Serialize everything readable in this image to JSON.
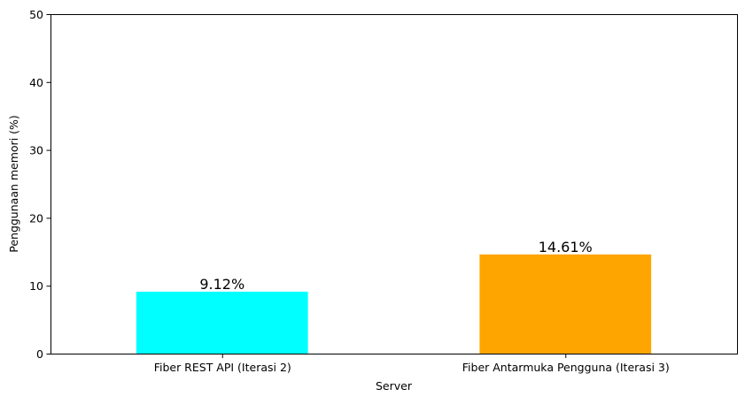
{
  "chart_data": {
    "type": "bar",
    "categories": [
      "Fiber REST API (Iterasi 2)",
      "Fiber Antarmuka Pengguna (Iterasi 3)"
    ],
    "values": [
      9.12,
      14.61
    ],
    "value_labels": [
      "9.12%",
      "14.61%"
    ],
    "colors": [
      "#00ffff",
      "#ffa500"
    ],
    "title": "",
    "xlabel": "Server",
    "ylabel": "Penggunaan memori (%)",
    "ylim": [
      0,
      50
    ],
    "yticks": [
      0,
      10,
      20,
      30,
      40,
      50
    ],
    "grid": false,
    "legend": "none"
  }
}
